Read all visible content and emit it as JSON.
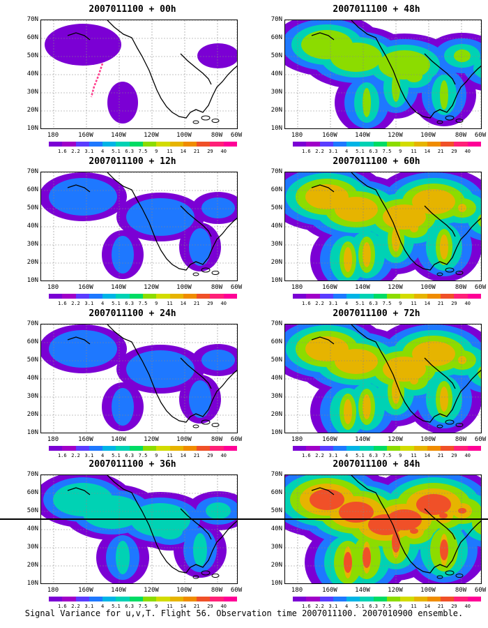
{
  "caption": "Signal Variance for u,v,T. Flight 56. Observation time 2007011100. 2007010900 ensemble.",
  "lat_labels": [
    "70N",
    "60N",
    "50N",
    "40N",
    "30N",
    "20N",
    "10N"
  ],
  "lon_labels": [
    "180",
    "160W",
    "140W",
    "120W",
    "100W",
    "80W",
    "60W"
  ],
  "colorbar": {
    "labels": [
      "1.6",
      "2.2",
      "3.1",
      "4",
      "5.1",
      "6.3",
      "7.5",
      "9",
      "11",
      "14",
      "21",
      "29",
      "40"
    ],
    "colors": [
      "#7b00d4",
      "#a000c8",
      "#5a3cff",
      "#1e78ff",
      "#00b4e6",
      "#00d2b4",
      "#00dc64",
      "#8cdc00",
      "#d2dc00",
      "#e6b400",
      "#f08c00",
      "#f05028",
      "#ff2078",
      "#ff0096"
    ]
  },
  "panels": [
    {
      "title": "2007011100 + 00h",
      "fill": 0
    },
    {
      "title": "2007011100 + 48h",
      "fill": 3
    },
    {
      "title": "2007011100 + 12h",
      "fill": 1
    },
    {
      "title": "2007011100 + 60h",
      "fill": 4
    },
    {
      "title": "2007011100 + 24h",
      "fill": 1
    },
    {
      "title": "2007011100 + 72h",
      "fill": 4
    },
    {
      "title": "2007011100 + 36h",
      "fill": 2
    },
    {
      "title": "2007011100 + 84h",
      "fill": 5
    }
  ]
}
